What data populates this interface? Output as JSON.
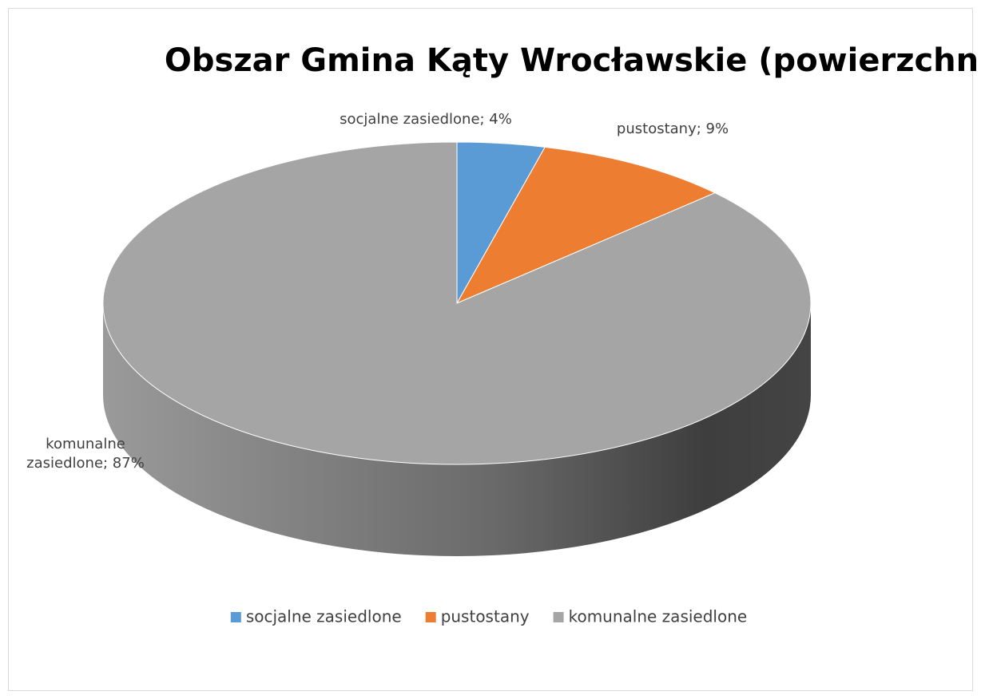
{
  "chart_data": {
    "type": "pie",
    "title": "Obszar Gmina Kąty Wrocławskie (powierzchnia)",
    "categories": [
      "socjalne zasiedlone",
      "pustostany",
      "komunalne zasiedlone"
    ],
    "values": [
      4,
      9,
      87
    ],
    "value_labels": [
      "socjalne zasiedlone; 4%",
      "pustostany; 9%",
      "komunalne zasiedlone; 87%"
    ],
    "colors": [
      "#5b9bd5",
      "#ed7d31",
      "#a5a5a5"
    ],
    "legend": "bottom"
  }
}
